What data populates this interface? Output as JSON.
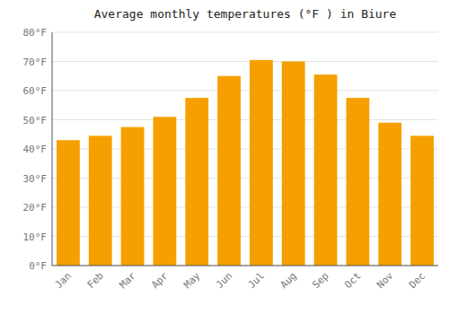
{
  "chart_data": {
    "type": "bar",
    "title": "Average monthly temperatures (°F ) in Biure",
    "categories": [
      "Jan",
      "Feb",
      "Mar",
      "Apr",
      "May",
      "Jun",
      "Jul",
      "Aug",
      "Sep",
      "Oct",
      "Nov",
      "Dec"
    ],
    "values": [
      43,
      44.5,
      47.5,
      51,
      57.5,
      65,
      70.5,
      70,
      65.5,
      57.5,
      49,
      44.5
    ],
    "color": "#F5A000",
    "ylim": [
      0,
      80
    ],
    "yticks": [
      {
        "value": 0,
        "label": "0°F"
      },
      {
        "value": 10,
        "label": "10°F"
      },
      {
        "value": 20,
        "label": "20°F"
      },
      {
        "value": 30,
        "label": "30°F"
      },
      {
        "value": 40,
        "label": "40°F"
      },
      {
        "value": 50,
        "label": "50°F"
      },
      {
        "value": 60,
        "label": "60°F"
      },
      {
        "value": 70,
        "label": "70°F"
      },
      {
        "value": 80,
        "label": "80°F"
      }
    ],
    "grid": true
  }
}
